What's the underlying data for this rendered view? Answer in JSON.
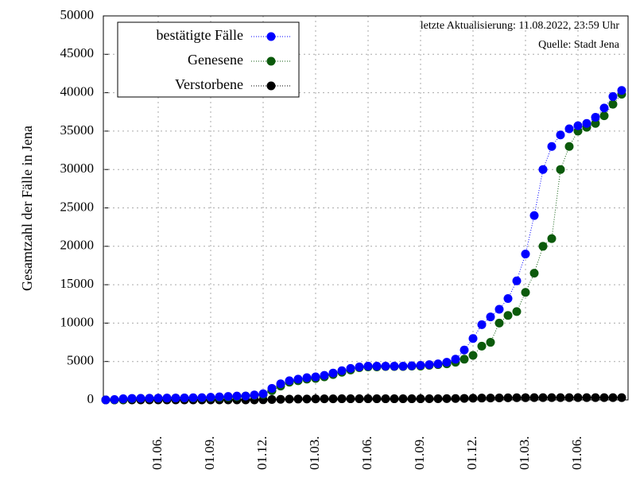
{
  "chart_data": {
    "type": "line",
    "ylabel": "Gesamtzahl der Fälle in Jena",
    "annotations": [
      "letzte Aktualisierung: 11.08.2022, 23:59 Uhr",
      "Quelle: Stadt Jena"
    ],
    "categories": [
      null,
      null,
      null,
      null,
      null,
      null,
      "01.06.",
      null,
      null,
      null,
      null,
      null,
      "01.09.",
      null,
      null,
      null,
      null,
      null,
      "01.12.",
      null,
      null,
      null,
      null,
      null,
      "01.03.",
      null,
      null,
      null,
      null,
      null,
      "01.06.",
      null,
      null,
      null,
      null,
      null,
      "01.09.",
      null,
      null,
      null,
      null,
      null,
      "01.12.",
      null,
      null,
      null,
      null,
      null,
      "01.03.",
      null,
      null,
      null,
      null,
      null,
      "01.06.",
      null,
      null,
      null,
      null,
      null
    ],
    "ylim": [
      0,
      50000
    ],
    "yticks": [
      0,
      5000,
      10000,
      15000,
      20000,
      25000,
      30000,
      35000,
      40000,
      45000,
      50000
    ],
    "grid": true,
    "legend": "top-left",
    "series": [
      {
        "name": "bestätigte Fälle",
        "color": "#0000ff",
        "values": [
          0,
          50,
          150,
          200,
          210,
          220,
          230,
          240,
          250,
          260,
          280,
          300,
          350,
          400,
          450,
          500,
          500,
          650,
          800,
          1500,
          2100,
          2500,
          2700,
          2900,
          3000,
          3200,
          3500,
          3800,
          4100,
          4300,
          4400,
          4400,
          4400,
          4400,
          4400,
          4450,
          4500,
          4600,
          4700,
          4900,
          5300,
          6500,
          8000,
          9800,
          10800,
          11800,
          13200,
          15500,
          19000,
          24000,
          30000,
          33000,
          34500,
          35300,
          35700,
          36000,
          36800,
          38000,
          39500,
          40300
        ]
      },
      {
        "name": "Genesene",
        "color": "#0b5a0b",
        "values": [
          0,
          0,
          50,
          150,
          190,
          200,
          210,
          220,
          230,
          240,
          250,
          260,
          280,
          300,
          350,
          400,
          500,
          600,
          700,
          1200,
          1800,
          2300,
          2500,
          2700,
          2800,
          3000,
          3300,
          3600,
          3900,
          4200,
          4300,
          4300,
          4350,
          4350,
          4350,
          4400,
          4400,
          4500,
          4600,
          4700,
          4900,
          5300,
          5800,
          7000,
          7500,
          10000,
          11000,
          11500,
          14000,
          16500,
          20000,
          21000,
          30000,
          33000,
          35000,
          35500,
          36000,
          37000,
          38500,
          39800
        ]
      },
      {
        "name": "Verstorbene",
        "color": "#000000",
        "values": [
          0,
          0,
          0,
          0,
          0,
          0,
          0,
          0,
          0,
          0,
          0,
          0,
          0,
          0,
          0,
          0,
          0,
          0,
          20,
          50,
          80,
          100,
          110,
          120,
          130,
          140,
          145,
          150,
          150,
          150,
          150,
          150,
          150,
          150,
          150,
          150,
          150,
          155,
          160,
          170,
          180,
          200,
          220,
          240,
          250,
          260,
          270,
          280,
          290,
          300,
          300,
          300,
          300,
          300,
          300,
          300,
          300,
          300,
          300,
          300
        ]
      }
    ]
  }
}
